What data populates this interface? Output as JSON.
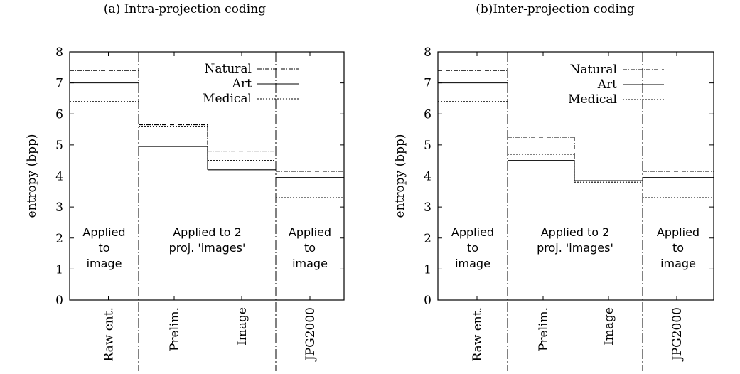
{
  "chart_data": [
    {
      "type": "line",
      "title": "(a) Intra-projection coding",
      "ylabel": "entropy (bpp)",
      "ylim": [
        0,
        8
      ],
      "yticks": [
        "0",
        "1",
        "2",
        "3",
        "4",
        "5",
        "6",
        "7",
        "8"
      ],
      "categories": [
        "Raw ent.",
        "Prelim.",
        "Image",
        "JPG2000"
      ],
      "series": [
        {
          "name": "Natural",
          "values": [
            7.4,
            5.65,
            4.8,
            4.15
          ]
        },
        {
          "name": "Art",
          "values": [
            7.0,
            4.95,
            4.2,
            3.95
          ]
        },
        {
          "name": "Medical",
          "values": [
            6.4,
            5.6,
            4.5,
            3.3
          ]
        }
      ],
      "region_labels": [
        [
          "Applied",
          "to",
          "image"
        ],
        [
          "Applied to 2",
          "proj. 'images'"
        ],
        [
          "Applied",
          "to",
          "image"
        ]
      ],
      "legend": "top-right",
      "grid": false
    },
    {
      "type": "line",
      "title": "(b)Inter-projection coding",
      "ylabel": "entropy (bpp)",
      "ylim": [
        0,
        8
      ],
      "yticks": [
        "0",
        "1",
        "2",
        "3",
        "4",
        "5",
        "6",
        "7",
        "8"
      ],
      "categories": [
        "Raw ent.",
        "Prelim.",
        "Image",
        "JPG2000"
      ],
      "series": [
        {
          "name": "Natural",
          "values": [
            7.4,
            5.25,
            4.55,
            4.15
          ]
        },
        {
          "name": "Art",
          "values": [
            7.0,
            4.5,
            3.85,
            3.95
          ]
        },
        {
          "name": "Medical",
          "values": [
            6.4,
            4.7,
            3.8,
            3.3
          ]
        }
      ],
      "region_labels": [
        [
          "Applied",
          "to",
          "image"
        ],
        [
          "Applied to 2",
          "proj. 'images'"
        ],
        [
          "Applied",
          "to",
          "image"
        ]
      ],
      "legend": "top-right",
      "grid": false
    }
  ]
}
